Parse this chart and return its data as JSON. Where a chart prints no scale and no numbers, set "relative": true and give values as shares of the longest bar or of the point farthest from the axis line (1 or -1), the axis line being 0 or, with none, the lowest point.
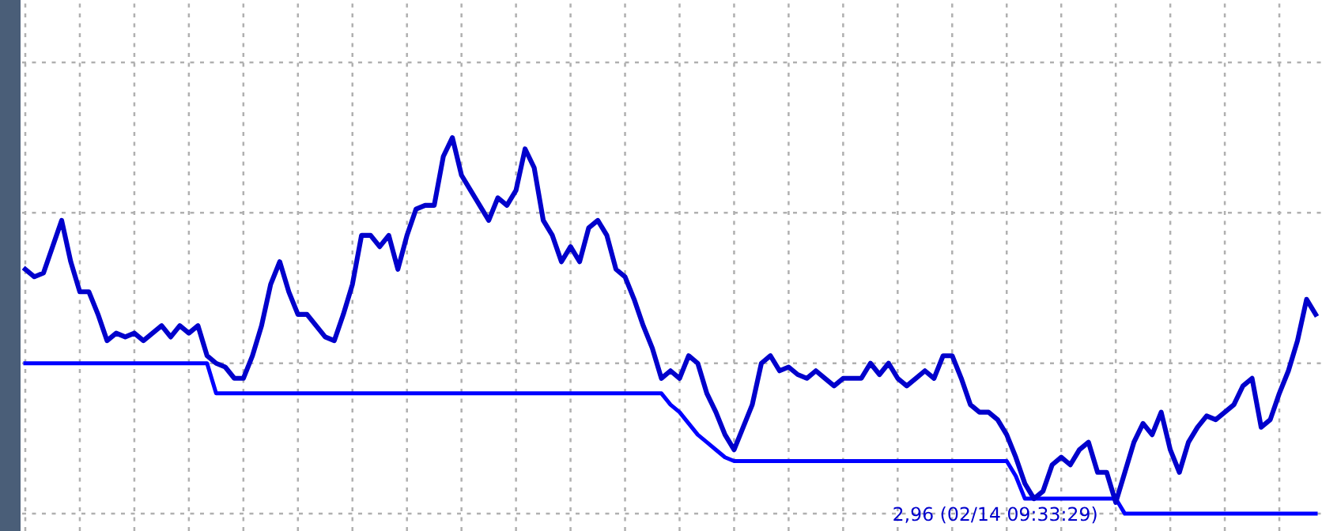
{
  "chart_data": {
    "type": "line",
    "relative": true,
    "grid": true,
    "line_style": "solid",
    "marker": "none",
    "categories": [
      null,
      null,
      null,
      null,
      null,
      null,
      null,
      null,
      null,
      null,
      null,
      null,
      null,
      null,
      null,
      null,
      null,
      null,
      null,
      null,
      null,
      null,
      null,
      null,
      null,
      null,
      null,
      null,
      null,
      null,
      null,
      null,
      null,
      null,
      null,
      null,
      null,
      null,
      null,
      null,
      null,
      null,
      null,
      null,
      null,
      null,
      null,
      null,
      null,
      null,
      null,
      null,
      null,
      null,
      null,
      null,
      null,
      null,
      null,
      null,
      null,
      null,
      null,
      null,
      null,
      null,
      null,
      null,
      null,
      null,
      null,
      null,
      null,
      null,
      null,
      null,
      null,
      null,
      null,
      null,
      null,
      null,
      null,
      null,
      null,
      null,
      null,
      null,
      null,
      null,
      null,
      null,
      null,
      null,
      null,
      null,
      null,
      null,
      null,
      null,
      null,
      null,
      null,
      null,
      null,
      null,
      null,
      null,
      null,
      null,
      null,
      null,
      null,
      null,
      null,
      null,
      null,
      null,
      null,
      null,
      null,
      null,
      null,
      null,
      null,
      null,
      null,
      null,
      null,
      null,
      null,
      null,
      null,
      null,
      null,
      null,
      null,
      null,
      null,
      null,
      null,
      null,
      null
    ],
    "series": [
      {
        "color": "#0000cc",
        "values": [
          0.65,
          0.63,
          0.64,
          0.71,
          0.78,
          0.67,
          0.59,
          0.59,
          0.53,
          0.46,
          0.48,
          0.47,
          0.48,
          0.46,
          0.48,
          0.5,
          0.47,
          0.5,
          0.48,
          0.5,
          0.42,
          0.4,
          0.39,
          0.36,
          0.36,
          0.42,
          0.5,
          0.61,
          0.67,
          0.59,
          0.53,
          0.53,
          0.5,
          0.47,
          0.46,
          0.53,
          0.61,
          0.74,
          0.74,
          0.71,
          0.74,
          0.65,
          0.74,
          0.81,
          0.82,
          0.82,
          0.95,
          1,
          0.9,
          0.86,
          0.82,
          0.78,
          0.84,
          0.82,
          0.86,
          0.97,
          0.92,
          0.78,
          0.74,
          0.67,
          0.71,
          0.67,
          0.76,
          0.78,
          0.74,
          0.65,
          0.63,
          0.57,
          0.5,
          0.44,
          0.36,
          0.38,
          0.36,
          0.42,
          0.4,
          0.32,
          0.27,
          0.21,
          0.17,
          0.23,
          0.29,
          0.4,
          0.42,
          0.38,
          0.39,
          0.37,
          0.36,
          0.38,
          0.36,
          0.34,
          0.36,
          0.36,
          0.36,
          0.4,
          0.37,
          0.4,
          0.36,
          0.34,
          0.36,
          0.38,
          0.36,
          0.42,
          0.42,
          0.36,
          0.29,
          0.27,
          0.27,
          0.25,
          0.21,
          0.15,
          0.08,
          0.04,
          0.06,
          0.13,
          0.15,
          0.13,
          0.17,
          0.19,
          0.11,
          0.11,
          0.03,
          0.11,
          0.19,
          0.24,
          0.21,
          0.27,
          0.17,
          0.11,
          0.19,
          0.23,
          0.26,
          0.25,
          0.27,
          0.29,
          0.34,
          0.36,
          0.23,
          0.25,
          0.32,
          0.38,
          0.46,
          0.57,
          0.53
        ]
      },
      {
        "color": "#0000ff",
        "values": [
          0.4,
          0.4,
          0.4,
          0.4,
          0.4,
          0.4,
          0.4,
          0.4,
          0.4,
          0.4,
          0.4,
          0.4,
          0.4,
          0.4,
          0.4,
          0.4,
          0.4,
          0.4,
          0.4,
          0.4,
          0.4,
          0.32,
          0.32,
          0.32,
          0.32,
          0.32,
          0.32,
          0.32,
          0.32,
          0.32,
          0.32,
          0.32,
          0.32,
          0.32,
          0.32,
          0.32,
          0.32,
          0.32,
          0.32,
          0.32,
          0.32,
          0.32,
          0.32,
          0.32,
          0.32,
          0.32,
          0.32,
          0.32,
          0.32,
          0.32,
          0.32,
          0.32,
          0.32,
          0.32,
          0.32,
          0.32,
          0.32,
          0.32,
          0.32,
          0.32,
          0.32,
          0.32,
          0.32,
          0.32,
          0.32,
          0.32,
          0.32,
          0.32,
          0.32,
          0.32,
          0.32,
          0.29,
          0.27,
          0.24,
          0.21,
          0.19,
          0.17,
          0.15,
          0.14,
          0.14,
          0.14,
          0.14,
          0.14,
          0.14,
          0.14,
          0.14,
          0.14,
          0.14,
          0.14,
          0.14,
          0.14,
          0.14,
          0.14,
          0.14,
          0.14,
          0.14,
          0.14,
          0.14,
          0.14,
          0.14,
          0.14,
          0.14,
          0.14,
          0.14,
          0.14,
          0.14,
          0.14,
          0.14,
          0.14,
          0.1,
          0.04,
          0.04,
          0.04,
          0.04,
          0.04,
          0.04,
          0.04,
          0.04,
          0.04,
          0.04,
          0.04,
          0,
          0,
          0,
          0,
          0,
          0,
          0,
          0,
          0,
          0,
          0,
          0,
          0,
          0,
          0,
          0,
          0,
          0,
          0,
          0,
          0,
          0
        ]
      }
    ],
    "annotations": [
      "2,96 (02/14 09:33:29)"
    ]
  }
}
